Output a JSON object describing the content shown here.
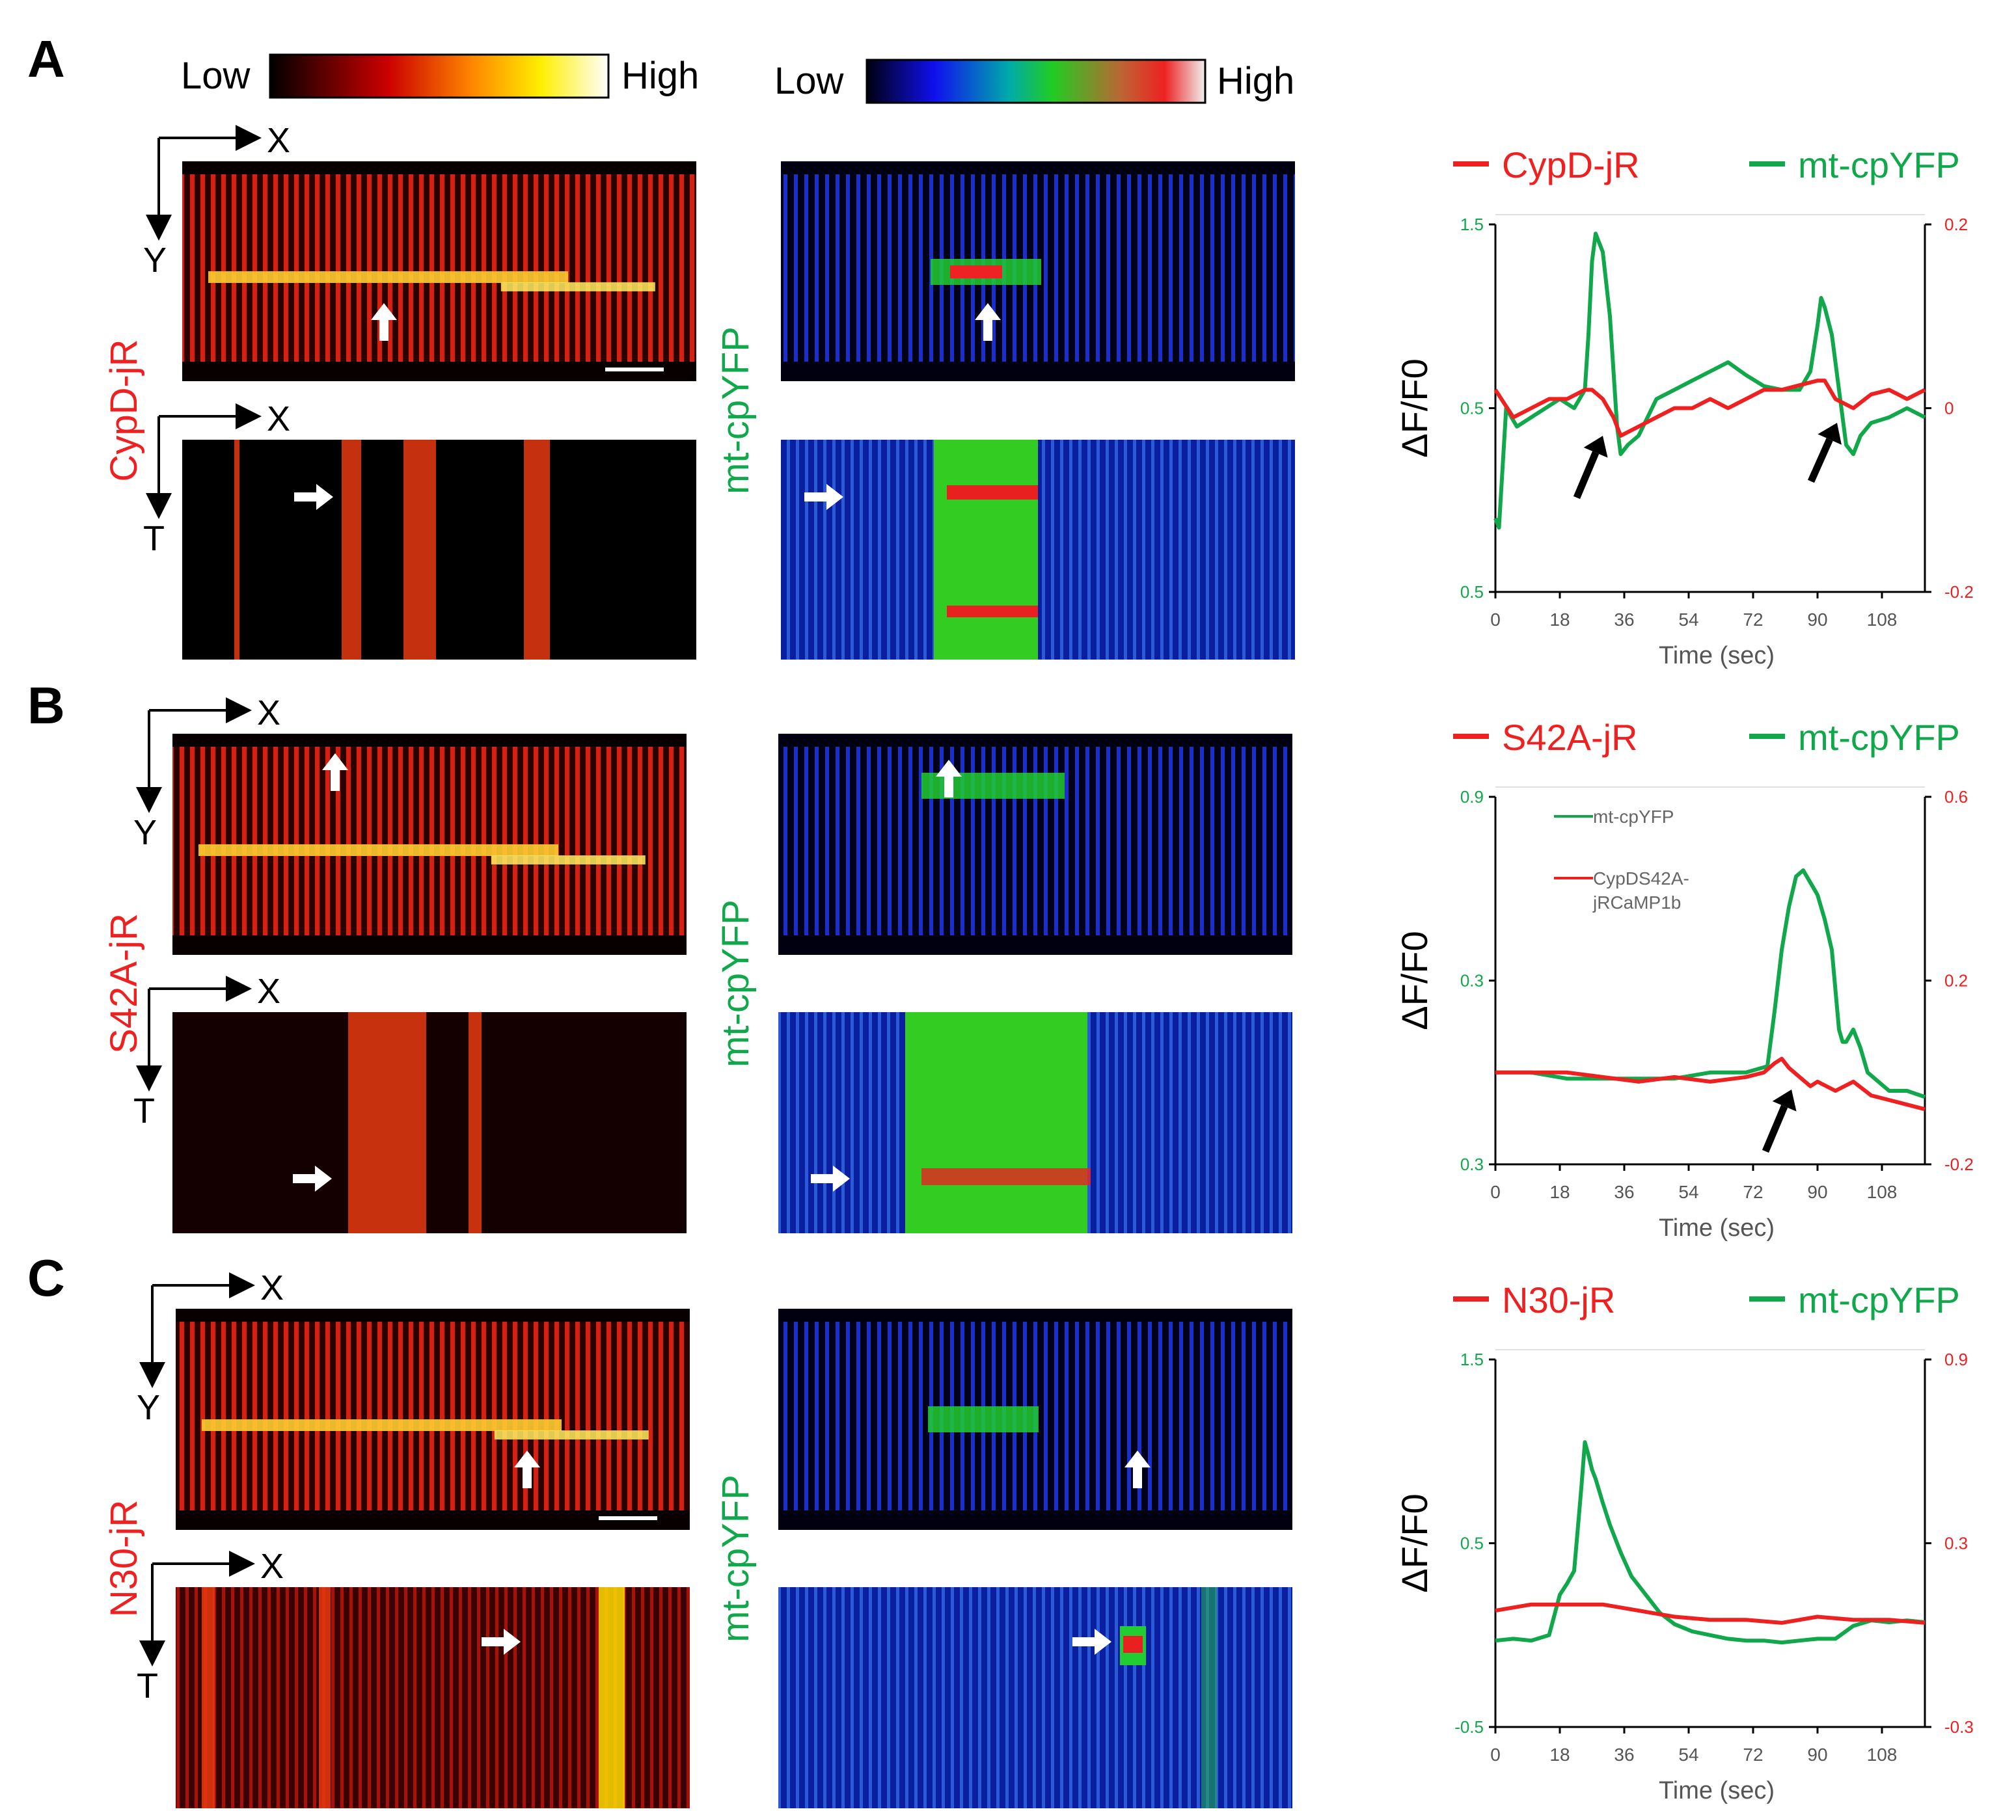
{
  "figure": {
    "colorbars": {
      "warm": {
        "low": "Low",
        "high": "High"
      },
      "rainbow": {
        "low": "Low",
        "high": "High"
      }
    },
    "colors": {
      "red": "#ee2020",
      "green": "#11a84b",
      "black": "#000000"
    },
    "panels": [
      {
        "letter": "A",
        "red_label": "CypD-jR",
        "green_label": "mt-cpYFP",
        "axes_xy": {
          "x": "X",
          "y": "Y"
        },
        "axes_xt": {
          "x": "X",
          "y": "T"
        },
        "legend": {
          "red": "CypD-jR",
          "green": "mt-cpYFP"
        },
        "left_axis": {
          "ticks": [
            "1.5",
            "0.5",
            "0.5"
          ],
          "label": "ΔF/F0"
        },
        "right_axis": {
          "ticks": [
            "0.2",
            "0",
            "-0.2"
          ]
        },
        "x_ticks": [
          "0",
          "18",
          "36",
          "54",
          "72",
          "90",
          "108"
        ],
        "x_label": "Time (sec)"
      },
      {
        "letter": "B",
        "red_label": "S42A-jR",
        "green_label": "mt-cpYFP",
        "axes_xy": {
          "x": "X",
          "y": "Y"
        },
        "axes_xt": {
          "x": "X",
          "y": "T"
        },
        "legend": {
          "red": "S42A-jR",
          "green": "mt-cpYFP"
        },
        "inner_legend": {
          "green": "mt-cpYFP",
          "red_line1": "CypDS42A-",
          "red_line2": "jRCaMP1b"
        },
        "left_axis": {
          "ticks": [
            "0.9",
            "0.3",
            "0.3"
          ],
          "label": "ΔF/F0"
        },
        "right_axis": {
          "ticks": [
            "0.6",
            "0.2",
            "-0.2"
          ]
        },
        "x_ticks": [
          "0",
          "18",
          "36",
          "54",
          "72",
          "90",
          "108"
        ],
        "x_label": "Time (sec)"
      },
      {
        "letter": "C",
        "red_label": "N30-jR",
        "green_label": "mt-cpYFP",
        "axes_xy": {
          "x": "X",
          "y": "Y"
        },
        "axes_xt": {
          "x": "X",
          "y": "T"
        },
        "legend": {
          "red": "N30-jR",
          "green": "mt-cpYFP"
        },
        "left_axis": {
          "ticks": [
            "1.5",
            "0.5",
            "-0.5"
          ],
          "label": "ΔF/F0"
        },
        "right_axis": {
          "ticks": [
            "0.9",
            "0.3",
            "-0.3"
          ]
        },
        "x_ticks": [
          "0",
          "18",
          "36",
          "54",
          "72",
          "90",
          "108"
        ],
        "x_label": "Time (sec)"
      }
    ]
  },
  "chart_data": [
    {
      "type": "line",
      "title": "",
      "legend": [
        "CypD-jR",
        "mt-cpYFP"
      ],
      "xlabel": "Time (sec)",
      "ylabel": "ΔF/F0",
      "xlim": [
        0,
        120
      ],
      "ylim_left": [
        -0.5,
        1.5
      ],
      "ylim_right": [
        -0.2,
        0.2
      ],
      "series": [
        {
          "name": "mt-cpYFP",
          "axis": "left",
          "x": [
            0,
            1,
            3,
            6,
            10,
            14,
            18,
            22,
            25,
            26,
            27,
            28,
            30,
            32,
            34,
            35,
            37,
            40,
            45,
            50,
            55,
            60,
            65,
            70,
            75,
            80,
            85,
            88,
            90,
            91,
            92,
            94,
            96,
            98,
            100,
            102,
            105,
            110,
            115,
            120
          ],
          "y": [
            -0.1,
            -0.15,
            0.5,
            0.4,
            0.45,
            0.5,
            0.55,
            0.5,
            0.6,
            0.9,
            1.3,
            1.45,
            1.35,
            1.0,
            0.4,
            0.25,
            0.3,
            0.35,
            0.55,
            0.6,
            0.65,
            0.7,
            0.75,
            0.68,
            0.62,
            0.6,
            0.6,
            0.7,
            0.95,
            1.1,
            1.05,
            0.9,
            0.6,
            0.3,
            0.25,
            0.35,
            0.42,
            0.45,
            0.5,
            0.45
          ]
        },
        {
          "name": "CypD-jR",
          "axis": "right",
          "x": [
            0,
            5,
            10,
            15,
            20,
            25,
            27,
            30,
            33,
            35,
            40,
            45,
            50,
            55,
            60,
            65,
            70,
            75,
            80,
            85,
            90,
            92,
            95,
            100,
            105,
            110,
            115,
            120
          ],
          "y": [
            0.02,
            -0.01,
            0.0,
            0.01,
            0.01,
            0.02,
            0.02,
            0.01,
            -0.01,
            -0.03,
            -0.02,
            -0.01,
            0.0,
            0.0,
            0.01,
            0.0,
            0.01,
            0.02,
            0.02,
            0.025,
            0.03,
            0.03,
            0.01,
            0.0,
            0.015,
            0.02,
            0.01,
            0.02
          ]
        }
      ]
    },
    {
      "type": "line",
      "title": "",
      "legend": [
        "S42A-jR",
        "mt-cpYFP"
      ],
      "xlabel": "Time (sec)",
      "ylabel": "ΔF/F0",
      "xlim": [
        0,
        120
      ],
      "ylim_left": [
        0.3,
        0.9
      ],
      "ylim_right": [
        -0.2,
        0.6
      ],
      "series": [
        {
          "name": "mt-cpYFP",
          "axis": "left",
          "x": [
            0,
            10,
            20,
            30,
            40,
            50,
            60,
            70,
            76,
            78,
            80,
            82,
            84,
            86,
            88,
            90,
            92,
            94,
            96,
            97,
            98,
            100,
            102,
            104,
            106,
            110,
            115,
            120
          ],
          "y": [
            0.45,
            0.45,
            0.44,
            0.44,
            0.44,
            0.44,
            0.45,
            0.45,
            0.46,
            0.55,
            0.65,
            0.72,
            0.77,
            0.78,
            0.76,
            0.74,
            0.7,
            0.65,
            0.52,
            0.5,
            0.5,
            0.52,
            0.49,
            0.45,
            0.44,
            0.42,
            0.42,
            0.41
          ]
        },
        {
          "name": "S42A-jR",
          "axis": "right",
          "x": [
            0,
            10,
            20,
            30,
            40,
            50,
            60,
            70,
            75,
            78,
            80,
            82,
            85,
            88,
            90,
            95,
            100,
            105,
            110,
            115,
            120
          ],
          "y": [
            0.0,
            0.0,
            0.0,
            -0.01,
            -0.02,
            -0.01,
            -0.02,
            -0.01,
            0.0,
            0.02,
            0.03,
            0.01,
            -0.01,
            -0.03,
            -0.02,
            -0.04,
            -0.02,
            -0.05,
            -0.06,
            -0.07,
            -0.08
          ]
        }
      ]
    },
    {
      "type": "line",
      "title": "",
      "legend": [
        "N30-jR",
        "mt-cpYFP"
      ],
      "xlabel": "Time (sec)",
      "ylabel": "ΔF/F0",
      "xlim": [
        0,
        120
      ],
      "ylim_left": [
        -0.5,
        1.5
      ],
      "ylim_right": [
        -0.3,
        0.9
      ],
      "series": [
        {
          "name": "mt-cpYFP",
          "axis": "left",
          "x": [
            0,
            5,
            10,
            15,
            18,
            20,
            22,
            24,
            25,
            26,
            27,
            28,
            30,
            32,
            35,
            38,
            42,
            46,
            50,
            55,
            60,
            65,
            70,
            75,
            80,
            85,
            90,
            95,
            100,
            105,
            110,
            115,
            120
          ],
          "y": [
            -0.03,
            -0.02,
            -0.03,
            0.0,
            0.22,
            0.28,
            0.35,
            0.8,
            1.05,
            0.98,
            0.9,
            0.85,
            0.72,
            0.6,
            0.45,
            0.32,
            0.22,
            0.12,
            0.06,
            0.02,
            0.0,
            -0.02,
            -0.03,
            -0.03,
            -0.04,
            -0.03,
            -0.02,
            -0.02,
            0.05,
            0.08,
            0.07,
            0.08,
            0.07
          ]
        },
        {
          "name": "N30-jR",
          "axis": "right",
          "x": [
            0,
            10,
            20,
            30,
            40,
            50,
            60,
            70,
            80,
            90,
            100,
            110,
            120
          ],
          "y": [
            0.08,
            0.1,
            0.1,
            0.1,
            0.08,
            0.06,
            0.05,
            0.05,
            0.04,
            0.06,
            0.05,
            0.05,
            0.04
          ]
        }
      ]
    }
  ]
}
